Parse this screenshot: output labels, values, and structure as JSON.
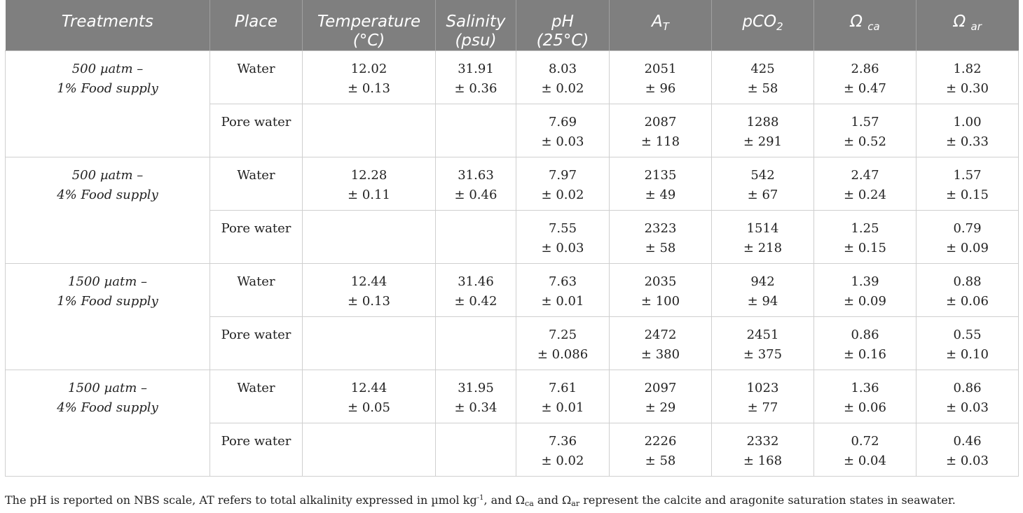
{
  "header": {
    "treatments": "Treatments",
    "place": "Place",
    "temperature_l1": "Temperature",
    "temperature_l2": "(°C)",
    "salinity_l1": "Salinity",
    "salinity_l2": "(psu)",
    "ph_l1": "pH",
    "ph_l2": "(25°C)",
    "at_main": "A",
    "at_sub": "T",
    "pco2_main": "pCO",
    "pco2_sub": "2",
    "omega_ca_main": "Ω ",
    "omega_ca_sub": "ca",
    "omega_ar_main": "Ω ",
    "omega_ar_sub": "ar"
  },
  "groups": [
    {
      "treatment_l1": "500 µatm –",
      "treatment_l2": "1% Food supply",
      "rows": [
        {
          "place": "Water",
          "temp": [
            "12.02",
            "± 0.13"
          ],
          "sal": [
            "31.91",
            "± 0.36"
          ],
          "ph": [
            "8.03",
            "± 0.02"
          ],
          "at": [
            "2051",
            "± 96"
          ],
          "pco2": [
            "425",
            "± 58"
          ],
          "oca": [
            "2.86",
            "± 0.47"
          ],
          "oar": [
            "1.82",
            "± 0.30"
          ]
        },
        {
          "place": "Pore water",
          "temp": [
            "",
            ""
          ],
          "sal": [
            "",
            ""
          ],
          "ph": [
            "7.69",
            "± 0.03"
          ],
          "at": [
            "2087",
            "± 118"
          ],
          "pco2": [
            "1288",
            "± 291"
          ],
          "oca": [
            "1.57",
            "± 0.52"
          ],
          "oar": [
            "1.00",
            "± 0.33"
          ]
        }
      ]
    },
    {
      "treatment_l1": "500 µatm –",
      "treatment_l2": "4% Food supply",
      "rows": [
        {
          "place": "Water",
          "temp": [
            "12.28",
            "± 0.11"
          ],
          "sal": [
            "31.63",
            "± 0.46"
          ],
          "ph": [
            "7.97",
            "± 0.02"
          ],
          "at": [
            "2135",
            "± 49"
          ],
          "pco2": [
            "542",
            "± 67"
          ],
          "oca": [
            "2.47",
            "± 0.24"
          ],
          "oar": [
            "1.57",
            "± 0.15"
          ]
        },
        {
          "place": "Pore water",
          "temp": [
            "",
            ""
          ],
          "sal": [
            "",
            ""
          ],
          "ph": [
            "7.55",
            "± 0.03"
          ],
          "at": [
            "2323",
            "± 58"
          ],
          "pco2": [
            "1514",
            "± 218"
          ],
          "oca": [
            "1.25",
            "± 0.15"
          ],
          "oar": [
            "0.79",
            "± 0.09"
          ]
        }
      ]
    },
    {
      "treatment_l1": "1500 µatm –",
      "treatment_l2": "1% Food supply",
      "rows": [
        {
          "place": "Water",
          "temp": [
            "12.44",
            "± 0.13"
          ],
          "sal": [
            "31.46",
            "± 0.42"
          ],
          "ph": [
            "7.63",
            "± 0.01"
          ],
          "at": [
            "2035",
            "± 100"
          ],
          "pco2": [
            "942",
            "± 94"
          ],
          "oca": [
            "1.39",
            "± 0.09"
          ],
          "oar": [
            "0.88",
            "± 0.06"
          ]
        },
        {
          "place": "Pore water",
          "temp": [
            "",
            ""
          ],
          "sal": [
            "",
            ""
          ],
          "ph": [
            "7.25",
            "± 0.086"
          ],
          "at": [
            "2472",
            "± 380"
          ],
          "pco2": [
            "2451",
            "± 375"
          ],
          "oca": [
            "0.86",
            "± 0.16"
          ],
          "oar": [
            "0.55",
            "± 0.10"
          ]
        }
      ]
    },
    {
      "treatment_l1": "1500 µatm –",
      "treatment_l2": "4% Food supply",
      "rows": [
        {
          "place": "Water",
          "temp": [
            "12.44",
            "± 0.05"
          ],
          "sal": [
            "31.95",
            "± 0.34"
          ],
          "ph": [
            "7.61",
            "± 0.01"
          ],
          "at": [
            "2097",
            "± 29"
          ],
          "pco2": [
            "1023",
            "± 77"
          ],
          "oca": [
            "1.36",
            "± 0.06"
          ],
          "oar": [
            "0.86",
            "± 0.03"
          ]
        },
        {
          "place": "Pore water",
          "temp": [
            "",
            ""
          ],
          "sal": [
            "",
            ""
          ],
          "ph": [
            "7.36",
            "± 0.02"
          ],
          "at": [
            "2226",
            "± 58"
          ],
          "pco2": [
            "2332",
            "± 168"
          ],
          "oca": [
            "0.72",
            "± 0.04"
          ],
          "oar": [
            "0.46",
            "± 0.03"
          ]
        }
      ]
    }
  ],
  "footnote": {
    "part1": "The pH is reported on NBS scale, AT refers to total alkalinity expressed in µmol kg",
    "sup": "-1",
    "part2": ", and Ω",
    "sub1": "ca",
    "part3": " and Ω",
    "sub2": "ar",
    "part4": " represent the calcite and aragonite saturation states in seawater."
  }
}
